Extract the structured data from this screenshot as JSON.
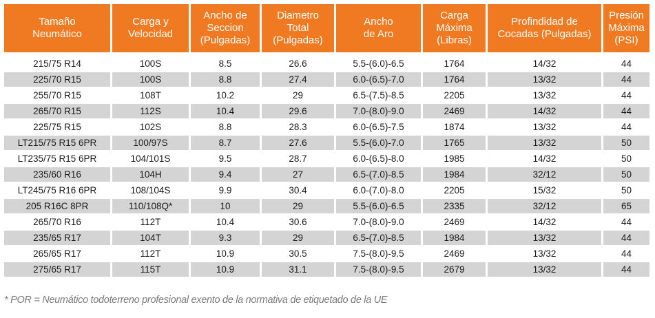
{
  "table": {
    "headers": [
      "Tamaño\nNeumático",
      "Carga y\nVelocidad",
      "Ancho de\nSeccion\n(Pulgadas)",
      "Diametro\nTotal\n(Pulgadas)",
      "Ancho\nde Aro",
      "Carga\nMáxima\n(Libras)",
      "Profindidad de\nCocadas (Pulgadas)",
      "Presión\nMáxima\n(PSI)"
    ],
    "rows": [
      [
        "215/75 R14",
        "100S",
        "8.5",
        "26.6",
        "5.5-(6.0)-6.5",
        "1764",
        "14/32",
        "44"
      ],
      [
        "225/70 R15",
        "100S",
        "8.8",
        "27.4",
        "6.0-(6.5)-7.0",
        "1764",
        "13/32",
        "44"
      ],
      [
        "255/70 R15",
        "108T",
        "10.2",
        "29",
        "6.5-(7.5)-8.5",
        "2205",
        "13/32",
        "44"
      ],
      [
        "265/70 R15",
        "112S",
        "10.4",
        "29.6",
        "7.0-(8.0)-9.0",
        "2469",
        "14/32",
        "44"
      ],
      [
        "225/75 R15",
        "102S",
        "8.8",
        "28.3",
        "6.0-(6.5)-7.5",
        "1874",
        "13/32",
        "44"
      ],
      [
        "LT215/75 R15 6PR",
        "100/97S",
        "8.7",
        "27.6",
        "5.5-(6.0)-7.0",
        "1765",
        "13/32",
        "50"
      ],
      [
        "LT235/75 R15 6PR",
        "104/101S",
        "9.5",
        "28.7",
        "6.0-(6.5)-8.0",
        "1985",
        "14/32",
        "50"
      ],
      [
        "235/60 R16",
        "104H",
        "9.4",
        "27",
        "6.5-(7.0)-8.5",
        "1984",
        "32/12",
        "50"
      ],
      [
        "LT245/75 R16 6PR",
        "108/104S",
        "9.9",
        "30.4",
        "6.0-(7.0)-8.0",
        "2205",
        "15/32",
        "50"
      ],
      [
        "205 R16C 8PR",
        "110/108Q*",
        "10",
        "29",
        "5.5-(6.0)-6.5",
        "2335",
        "32/12",
        "65"
      ],
      [
        "265/70 R16",
        "112T",
        "10.4",
        "30.6",
        "7.0-(8.0)-9.0",
        "2469",
        "14/32",
        "44"
      ],
      [
        "235/65 R17",
        "104T",
        "9.3",
        "29",
        "6.5-(7.0)-8.5",
        "1984",
        "13/32",
        "44"
      ],
      [
        "265/65 R17",
        "112T",
        "10.9",
        "30.5",
        "7.5-(8.0)-9.5",
        "2469",
        "13/32",
        "44"
      ],
      [
        "275/65 R17",
        "115T",
        "10.9",
        "31.1",
        "7.5-(8.0)-9.5",
        "2679",
        "13/32",
        "44"
      ]
    ]
  },
  "footnote": "* POR = Neumático todoterreno profesional exento de la normativa de etiquetado de la UE",
  "colors": {
    "header_bg": "#f07a22",
    "header_text": "#ffffff",
    "row_alt_bg": "#d4d4d4",
    "footnote_text": "#7a7a7a"
  }
}
